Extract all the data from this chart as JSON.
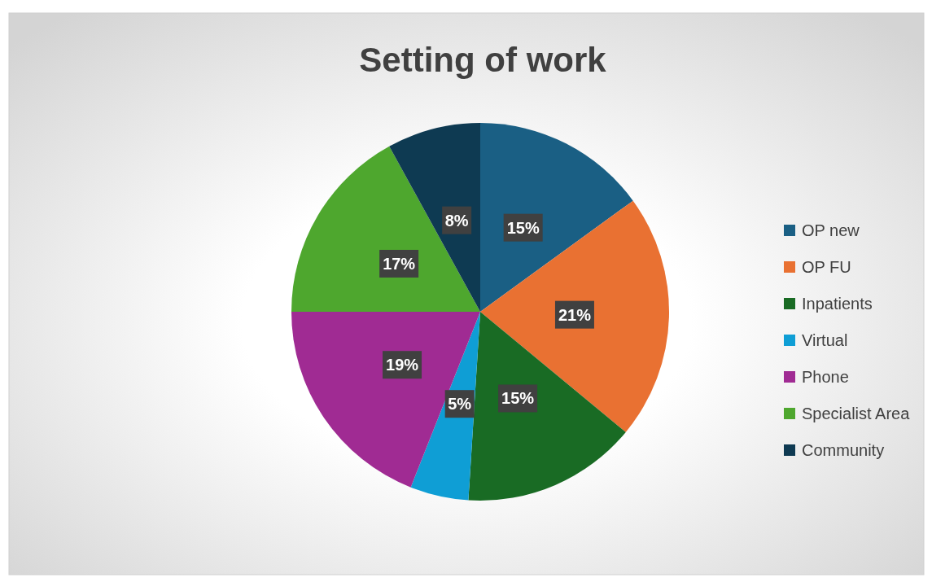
{
  "chart_data": {
    "type": "pie",
    "title": "Setting of work",
    "categories": [
      "OP new",
      "OP FU",
      "Inpatients",
      "Virtual",
      "Phone",
      "Specialist Area",
      "Community"
    ],
    "values": [
      15,
      21,
      15,
      5,
      19,
      17,
      8
    ],
    "colors": [
      "#1a5f84",
      "#e97132",
      "#196b24",
      "#0f9ed5",
      "#a02b93",
      "#4ea72e",
      "#0e3a52"
    ],
    "value_labels": [
      "15%",
      "21%",
      "15%",
      "5%",
      "19%",
      "17%",
      "8%"
    ],
    "legend": "right"
  }
}
